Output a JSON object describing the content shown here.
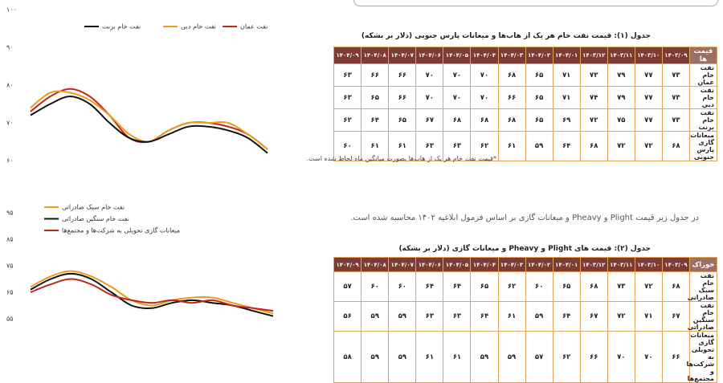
{
  "chart_data": [
    {
      "type": "line",
      "ylim": [
        60,
        100
      ],
      "yticks": [
        {
          "value": 100,
          "label": "۱۰۰"
        },
        {
          "value": 90,
          "label": "۹۰"
        },
        {
          "value": 80,
          "label": "۸۰"
        },
        {
          "value": 70,
          "label": "۷۰"
        },
        {
          "value": 60,
          "label": "۶۰"
        }
      ],
      "series": [
        {
          "name": "نفت عمان",
          "color": "#c0261d",
          "values": [
            73,
            77,
            79,
            77,
            72,
            66,
            65,
            68,
            70,
            70,
            69,
            67,
            63
          ]
        },
        {
          "name": "نفت خام دبی",
          "color": "#f09a1a",
          "values": [
            74,
            78,
            78,
            76,
            72,
            67,
            65,
            68,
            70,
            70,
            70,
            67,
            63
          ]
        },
        {
          "name": "نفت خام برنت",
          "color": "#111111",
          "values": [
            72,
            75,
            77,
            75,
            70,
            66,
            65,
            67,
            69,
            69,
            68,
            66,
            62
          ]
        }
      ]
    },
    {
      "type": "line",
      "ylim": [
        55,
        95
      ],
      "yticks": [
        {
          "value": 95,
          "label": "۹۵"
        },
        {
          "value": 85,
          "label": "۸۵"
        },
        {
          "value": 75,
          "label": "۷۵"
        },
        {
          "value": 65,
          "label": "۶۵"
        },
        {
          "value": 55,
          "label": "۵۵"
        }
      ],
      "series": [
        {
          "name": "نفت خام سبک صادراتی",
          "color": "#f09a1a",
          "values": [
            67,
            71,
            73,
            71,
            67,
            62,
            60,
            62,
            63,
            63,
            61,
            59,
            57
          ]
        },
        {
          "name": "نفت خام سنگین صادراتی",
          "color": "#111111",
          "values": [
            66,
            70,
            72,
            70,
            65,
            60,
            59,
            61,
            62,
            61,
            60,
            58,
            56
          ]
        },
        {
          "name": "میعانات گازی تحویلی به شرکت‌ها و مجتمع‌ها",
          "color": "#c0261d",
          "values": [
            65,
            68,
            70,
            68,
            64,
            62,
            61,
            62,
            61,
            62,
            60,
            59,
            58
          ]
        }
      ]
    }
  ],
  "table1": {
    "title": "جدول (۱): قیمت نفت خام هر یک از هاب‌ها و میعانات پارس جنوبی (دلار بر بشکه)",
    "header": [
      "قیمت ها",
      "۱۴۰۳/۰۹",
      "۱۴۰۳/۱۰",
      "۱۴۰۳/۱۱",
      "۱۴۰۳/۱۲",
      "۱۴۰۴/۰۱",
      "۱۴۰۴/۰۲",
      "۱۴۰۴/۰۳",
      "۱۴۰۴/۰۴",
      "۱۴۰۴/۰۵",
      "۱۴۰۴/۰۶",
      "۱۴۰۴/۰۷",
      "۱۴۰۴/۰۸",
      "۱۴۰۴/۰۹"
    ],
    "rows": [
      [
        "نفت خام عمان",
        "۷۳",
        "۷۷",
        "۷۹",
        "۷۳",
        "۷۱",
        "۶۵",
        "۶۸",
        "۷۰",
        "۷۰",
        "۷۰",
        "۶۶",
        "۶۶",
        "۶۳"
      ],
      [
        "نفت خام دبی",
        "۷۳",
        "۷۷",
        "۷۹",
        "۷۴",
        "۷۱",
        "۶۵",
        "۶۶",
        "۷۰",
        "۷۰",
        "۷۰",
        "۶۶",
        "۶۵",
        "۶۳"
      ],
      [
        "نفت خام برنت",
        "۷۳",
        "۷۷",
        "۷۵",
        "۷۲",
        "۶۹",
        "۶۵",
        "۶۸",
        "۶۸",
        "۶۸",
        "۶۷",
        "۶۵",
        "۶۴",
        "۶۲"
      ],
      [
        "میعانات گازی پارس جنوبی",
        "۶۸",
        "۷۲",
        "۷۲",
        "۶۸",
        "۶۴",
        "۵۹",
        "۶۱",
        "۶۲",
        "۶۳",
        "۶۳",
        "۶۱",
        "۶۱",
        "۶۰"
      ]
    ]
  },
  "note": "*قیمت نفت خام هر یک از هاب‌ها بصورت میانگین ماه لحاظ شده است.",
  "paragraph": "در جدول زیر قیمت Plight و Pheavy و میعانات گازی بر اساس فرمول ابلاغیه ۱۴۰۲ محاسبه شده است.",
  "table2": {
    "title": "جدول (۲): قیمت های Plight و Pheavy و میعانات گازی (دلار بر بشکه)",
    "header": [
      "خوراک",
      "۱۴۰۳/۰۹",
      "۱۴۰۳/۱۰",
      "۱۴۰۳/۱۱",
      "۱۴۰۳/۱۲",
      "۱۴۰۴/۰۱",
      "۱۴۰۴/۰۲",
      "۱۴۰۴/۰۳",
      "۱۴۰۴/۰۴",
      "۱۴۰۴/۰۵",
      "۱۴۰۴/۰۶",
      "۱۴۰۴/۰۷",
      "۱۴۰۴/۰۸",
      "۱۴۰۴/۰۹"
    ],
    "rows": [
      [
        "نفت خام سبک صادراتی",
        "۶۸",
        "۷۲",
        "۷۳",
        "۶۸",
        "۶۵",
        "۶۰",
        "۶۲",
        "۶۵",
        "۶۴",
        "۶۴",
        "۶۰",
        "۶۰",
        "۵۷"
      ],
      [
        "نفت خام سنگین صادراتی",
        "۶۷",
        "۷۱",
        "۷۲",
        "۶۷",
        "۶۴",
        "۵۹",
        "۶۱",
        "۶۴",
        "۶۳",
        "۶۳",
        "۵۹",
        "۵۹",
        "۵۶"
      ],
      [
        "میعانات گازی تحویلی به شرکت‌ها و مجتمع‌ها",
        "۶۶",
        "۷۰",
        "۷۰",
        "۶۶",
        "۶۲",
        "۵۷",
        "۵۹",
        "۵۹",
        "۶۱",
        "۶۱",
        "۵۹",
        "۵۹",
        "۵۸"
      ]
    ]
  }
}
